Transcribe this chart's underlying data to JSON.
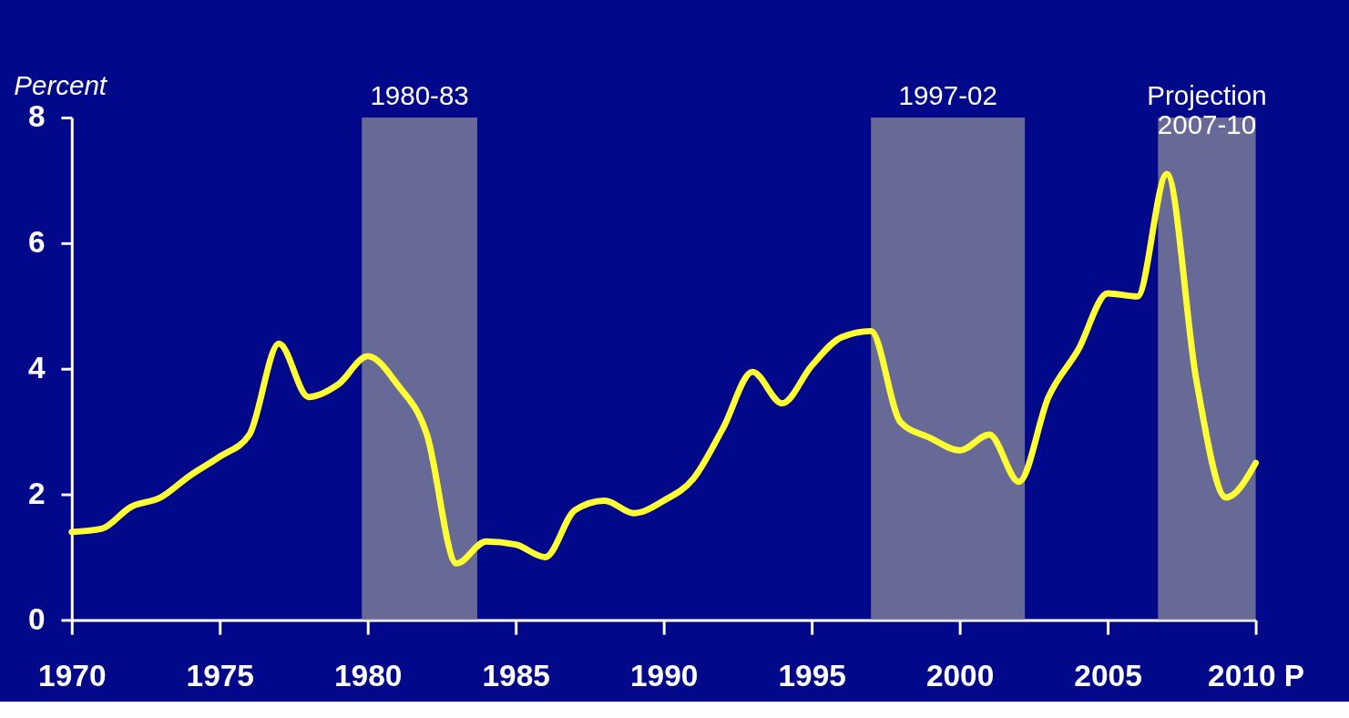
{
  "chart_data": {
    "type": "line",
    "ylabel": "Percent",
    "x": [
      1970,
      1971,
      1972,
      1973,
      1974,
      1975,
      1976,
      1977,
      1978,
      1979,
      1980,
      1981,
      1982,
      1983,
      1984,
      1985,
      1986,
      1987,
      1988,
      1989,
      1990,
      1991,
      1992,
      1993,
      1994,
      1995,
      1996,
      1997,
      1998,
      1999,
      2000,
      2001,
      2002,
      2003,
      2004,
      2005,
      2006,
      2007,
      2008,
      2009,
      2010
    ],
    "series": [
      {
        "color": "#ffff33",
        "values": [
          1.4,
          1.45,
          1.8,
          1.95,
          2.3,
          2.6,
          2.95,
          4.4,
          3.55,
          3.75,
          4.2,
          3.75,
          2.95,
          0.9,
          1.25,
          1.2,
          1.0,
          1.75,
          1.9,
          1.7,
          1.9,
          2.25,
          3.05,
          3.95,
          3.45,
          4.05,
          4.5,
          4.6,
          3.15,
          2.9,
          2.7,
          2.95,
          2.2,
          3.55,
          4.3,
          5.2,
          5.15,
          7.1,
          3.8,
          1.95,
          2.5
        ]
      }
    ],
    "xlim": [
      1970,
      2010
    ],
    "ylim": [
      0,
      8
    ],
    "xticks": [
      1970,
      1975,
      1980,
      1985,
      1990,
      1995,
      2000,
      2005,
      {
        "value": 2010,
        "label": "2010 P"
      }
    ],
    "yticks": [
      0,
      2,
      4,
      6,
      8
    ],
    "bands": [
      {
        "axis": "x",
        "from": 1979.8,
        "to": 1983.7,
        "label": "1980-83",
        "color": "#8a8a9a"
      },
      {
        "axis": "x",
        "from": 1997.0,
        "to": 2002.2,
        "label": "1997-02",
        "color": "#8a8a9a"
      },
      {
        "axis": "x",
        "from": 2006.7,
        "to": 2010.0,
        "label": "Projection 2007-10",
        "color": "#8a8a9a"
      }
    ],
    "grid": false,
    "marker": "none",
    "line_style": "solid"
  }
}
